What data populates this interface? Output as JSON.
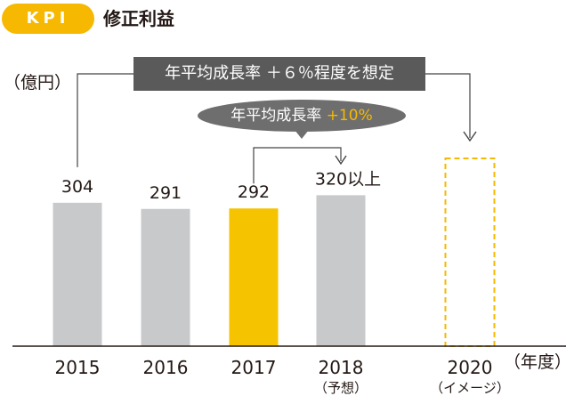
{
  "header": {
    "badge": "KPI",
    "title": "修正利益"
  },
  "chart_data": {
    "type": "bar",
    "ylabel": "（億円）",
    "xunit": "（年度）",
    "categories": [
      "2015",
      "2016",
      "2017",
      "2018",
      "2020"
    ],
    "category_notes": [
      "",
      "",
      "",
      "（予想）",
      "（イメージ）"
    ],
    "values": [
      304,
      291,
      292,
      320,
      null
    ],
    "value_labels": [
      "304",
      "291",
      "292",
      "320以上",
      ""
    ],
    "highlight_category": "2017",
    "dashed_category": "2020",
    "annotations": {
      "overall_growth": "年平均成長率 ＋６％程度を想定",
      "short_growth_prefix": "年平均成長率",
      "short_growth_value": "+10%"
    }
  },
  "colors": {
    "bar_default": "#c8c9ca",
    "bar_highlight": "#f6c300",
    "bar_dashed": "#f6b800",
    "accent": "#f6b800",
    "banner": "#5a5a5a",
    "bubble": "#6e6e6e",
    "text": "#231815"
  }
}
